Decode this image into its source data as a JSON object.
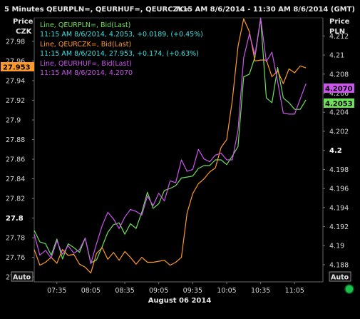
{
  "header": {
    "title": "5 Minutes QEURPLN=, QEURHUF=, QEURCZK=",
    "range": "7:15 AM 8/6/2014 - 11:30 AM 8/6/2014 (GMT)"
  },
  "left_axis": {
    "label_line1": "Price",
    "label_line2": "CZK",
    "auto": "Auto"
  },
  "right_axis": {
    "label_line1": "Price",
    "label_line2": "PLN",
    "auto": "Auto"
  },
  "x_axis": {
    "date_label": "August 06 2014"
  },
  "legend": [
    {
      "line1": "Line, QEURPLN=, Bid(Last)",
      "line2": "11:15 AM 8/6/2014, 4.2053, +0.0189, (+0.45%)",
      "color": "#6ee05a",
      "value_color": "#3fe0e0"
    },
    {
      "line1": "Line, QEURCZK=, Bid(Last)",
      "line2": "11:15 AM 8/6/2014, 27.953, +0.174, (+0.63%)",
      "color": "#ff9a2a",
      "value_color": "#3fe0e0"
    },
    {
      "line1": "Line, QEURHUF=, Bid(Last)",
      "line2": "11:15 AM 8/6/2014, 4.2070",
      "color": "#cc55ee",
      "value_color": "#cc55ee"
    }
  ],
  "badges": {
    "czk": {
      "text": "27.953",
      "color": "#ff9a2a"
    },
    "huf": {
      "text": "4.2070",
      "color": "#cc55ee"
    },
    "pln": {
      "text": "4.2053",
      "color": "#6ee05a"
    }
  },
  "colors": {
    "background": "#000000",
    "axis": "#555555"
  },
  "chart_data": {
    "type": "line",
    "title": "5 Minutes QEURPLN=, QEURHUF=, QEURCZK=",
    "xlabel": "August 06 2014",
    "x_ticks": [
      "07:35",
      "08:05",
      "08:35",
      "09:05",
      "09:35",
      "10:05",
      "10:35",
      "11:05"
    ],
    "x_range": [
      "07:15",
      "11:30"
    ],
    "left_axis": {
      "label": "Price CZK",
      "range": [
        27.735,
        28.004
      ],
      "ticks": [
        27.74,
        27.76,
        27.78,
        27.8,
        27.82,
        27.84,
        27.86,
        27.88,
        27.9,
        27.92,
        27.94,
        27.96,
        27.98
      ],
      "tick_labels": [
        "27.74",
        "27.76",
        "27.78",
        "27.8",
        "27.82",
        "27.84",
        "27.86",
        "27.88",
        "27.9",
        "27.92",
        "27.94",
        "27.96",
        "27.98"
      ]
    },
    "right_axis": {
      "label": "Price PLN",
      "range": [
        4.1862,
        4.2139
      ],
      "ticks": [
        4.188,
        4.19,
        4.192,
        4.194,
        4.196,
        4.198,
        4.2,
        4.202,
        4.204,
        4.206,
        4.208,
        4.21,
        4.212
      ],
      "tick_labels": [
        "4.188",
        "4.19",
        "4.192",
        "4.194",
        "4.196",
        "4.198",
        "4.2",
        "4.202",
        "4.204",
        "4.206",
        "4.208",
        "4.21",
        "4.212"
      ]
    },
    "x": [
      "07:15",
      "07:20",
      "07:25",
      "07:30",
      "07:35",
      "07:40",
      "07:45",
      "07:50",
      "07:55",
      "08:00",
      "08:05",
      "08:10",
      "08:15",
      "08:20",
      "08:25",
      "08:30",
      "08:35",
      "08:40",
      "08:45",
      "08:50",
      "08:55",
      "09:00",
      "09:05",
      "09:10",
      "09:15",
      "09:20",
      "09:25",
      "09:30",
      "09:35",
      "09:40",
      "09:45",
      "09:50",
      "09:55",
      "10:00",
      "10:05",
      "10:10",
      "10:15",
      "10:20",
      "10:25",
      "10:30",
      "10:35",
      "10:40",
      "10:45",
      "10:50",
      "10:55",
      "11:00",
      "11:05",
      "11:10",
      "11:15"
    ],
    "series": [
      {
        "name": "QEURPLN=",
        "axis": "right",
        "color": "#6ee05a",
        "values": [
          4.1916,
          4.1904,
          4.1902,
          4.189,
          4.1907,
          4.1886,
          4.1902,
          4.1898,
          4.1893,
          4.1908,
          4.1882,
          4.1885,
          4.1899,
          4.1914,
          4.1922,
          4.1924,
          4.1912,
          4.1923,
          4.1918,
          4.1935,
          4.1956,
          4.1939,
          4.1944,
          4.1958,
          4.196,
          4.1963,
          4.1971,
          4.1972,
          4.1973,
          4.1981,
          4.1984,
          4.1984,
          4.199,
          4.199,
          4.1985,
          4.1994,
          4.2004,
          4.2077,
          4.208,
          4.2098,
          4.2138,
          4.2055,
          4.205,
          4.2087,
          4.2055,
          4.205,
          4.2043,
          4.2043,
          4.2053
        ]
      },
      {
        "name": "QEURCZK=",
        "axis": "left",
        "color": "#ff9a2a",
        "values": [
          27.768,
          27.752,
          27.755,
          27.76,
          27.754,
          27.768,
          27.762,
          27.763,
          27.753,
          27.75,
          27.744,
          27.764,
          27.77,
          27.758,
          27.765,
          27.757,
          27.766,
          27.76,
          27.753,
          27.76,
          27.755,
          27.755,
          27.756,
          27.757,
          27.752,
          27.755,
          27.76,
          27.805,
          27.825,
          27.835,
          27.84,
          27.847,
          27.851,
          27.872,
          27.88,
          27.92,
          27.975,
          28.003,
          27.99,
          27.96,
          27.961,
          27.961,
          27.944,
          27.95,
          27.937,
          27.952,
          27.948,
          27.955,
          27.953
        ]
      },
      {
        "name": "QEURHUF=",
        "axis": "right",
        "color": "#cc55ee",
        "values": [
          4.1912,
          4.189,
          4.1895,
          4.1887,
          4.1905,
          4.1891,
          4.19,
          4.1892,
          4.1896,
          4.1908,
          4.1881,
          4.1902,
          4.1921,
          4.1935,
          4.1928,
          4.1918,
          4.193,
          4.1938,
          4.1936,
          4.1932,
          4.1952,
          4.1942,
          4.1955,
          4.1947,
          4.1968,
          4.1966,
          4.199,
          4.1978,
          4.198,
          4.2001,
          4.1991,
          4.1988,
          4.1995,
          4.1997,
          4.199,
          4.199,
          4.2021,
          4.2097,
          4.2122,
          4.21,
          4.2139,
          4.2093,
          4.2103,
          4.2072,
          4.2039,
          4.2038,
          4.2038,
          4.2054,
          4.207
        ]
      }
    ]
  }
}
